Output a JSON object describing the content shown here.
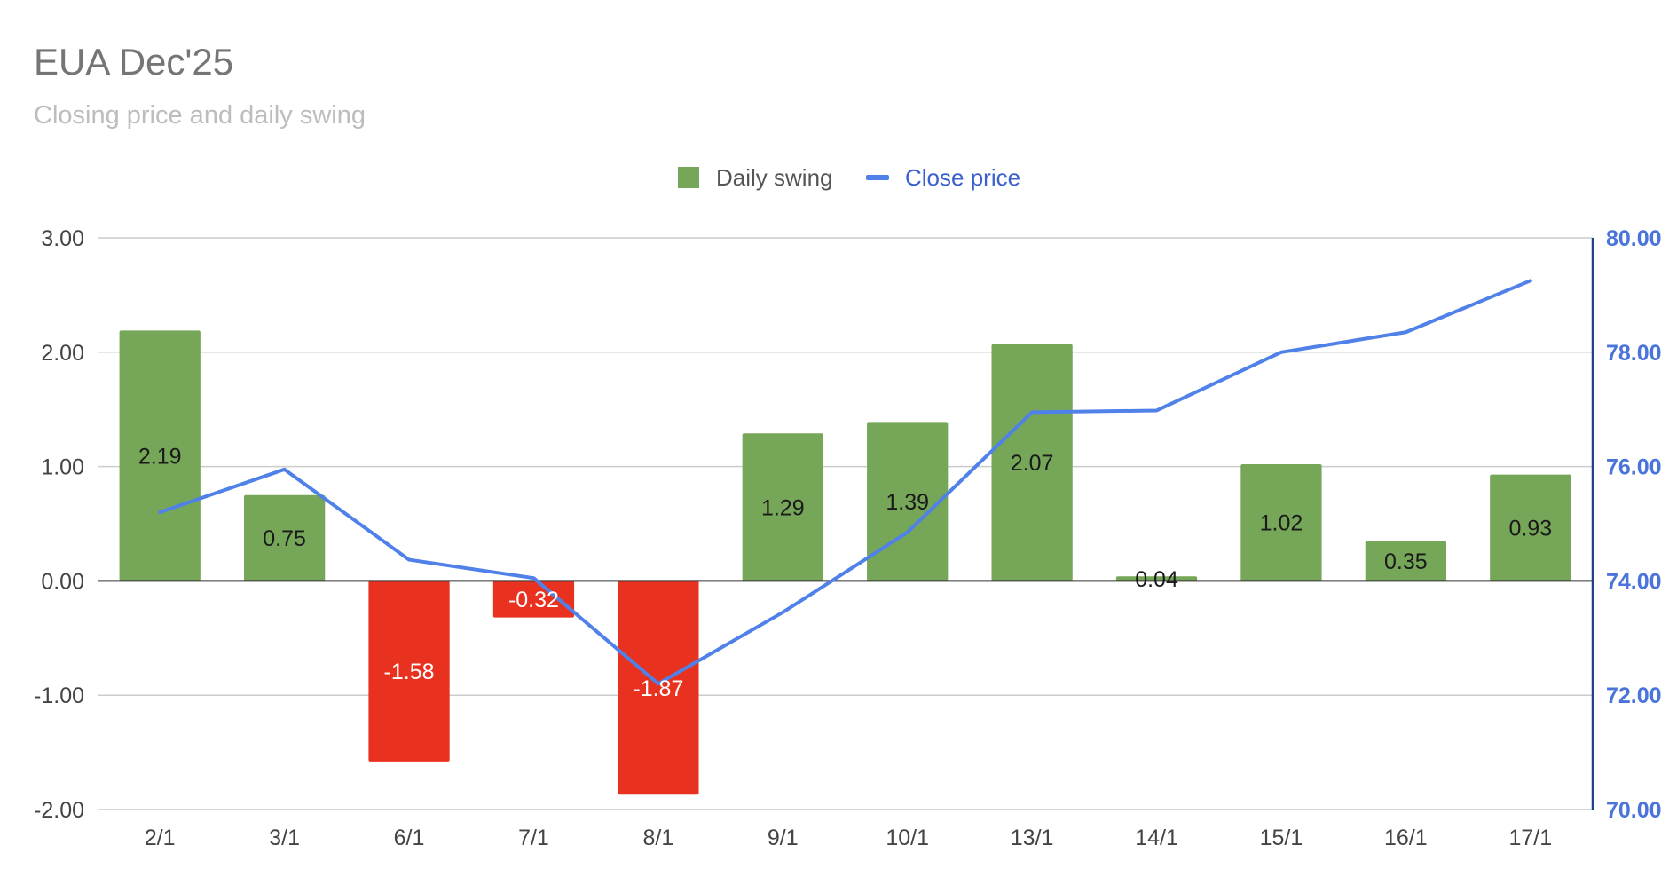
{
  "chart_data": {
    "type": "bar",
    "title": "EUA Dec'25",
    "subtitle": "Closing price and daily swing",
    "categories": [
      "2/1",
      "3/1",
      "6/1",
      "7/1",
      "8/1",
      "9/1",
      "10/1",
      "13/1",
      "14/1",
      "15/1",
      "16/1",
      "17/1"
    ],
    "series": [
      {
        "name": "Daily swing",
        "type": "bar",
        "axis": "left",
        "values": [
          2.19,
          0.75,
          -1.58,
          -0.32,
          -1.87,
          1.29,
          1.39,
          2.07,
          0.04,
          1.02,
          0.35,
          0.93
        ],
        "data_labels": [
          "2.19",
          "0.75",
          "-1.58",
          "-0.32",
          "-1.87",
          "1.29",
          "1.39",
          "2.07",
          "0.04",
          "1.02",
          "0.35",
          "0.93"
        ],
        "color_positive": "#76a657",
        "color_negative": "#e8321f"
      },
      {
        "name": "Close price",
        "type": "line",
        "axis": "right",
        "values": [
          75.2,
          75.95,
          74.37,
          74.05,
          72.2,
          73.45,
          74.85,
          76.95,
          76.98,
          78.0,
          78.35,
          79.25
        ],
        "color": "#4f81e8"
      }
    ],
    "y_left": {
      "min": -2,
      "max": 3,
      "ticks": [
        "3.00",
        "2.00",
        "1.00",
        "0.00",
        "-1.00",
        "-2.00"
      ]
    },
    "y_right": {
      "min": 70,
      "max": 80,
      "ticks": [
        "80.00",
        "78.00",
        "76.00",
        "74.00",
        "72.00",
        "70.00"
      ]
    },
    "grid": true,
    "legend_position": "top-center"
  },
  "colors": {
    "title": "#757575",
    "subtitle": "#bdbdbd",
    "gridline": "#cccccc",
    "zero_line": "#333333",
    "right_axis": "#4a74d9",
    "legend_swing_text": "#555555",
    "legend_close_text": "#3a5fcf"
  }
}
